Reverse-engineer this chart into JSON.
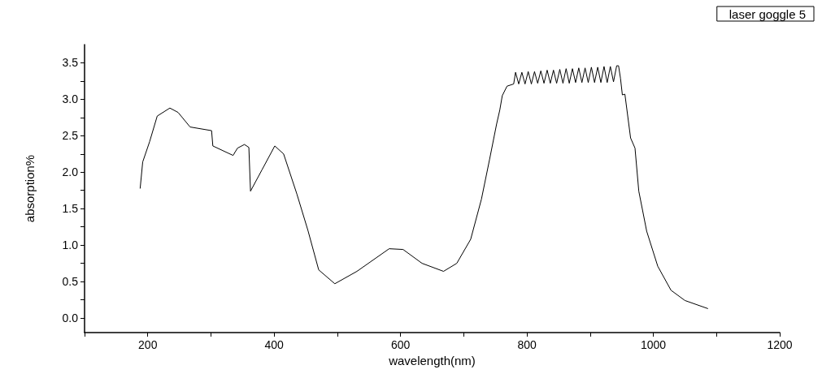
{
  "chart_data": {
    "type": "line",
    "xlabel": "wavelength(nm)",
    "ylabel": "absorption%",
    "legend": "top right",
    "grid": false,
    "marker": "none",
    "line_style": "solid",
    "xlim": [
      100,
      1200
    ],
    "ylim": [
      -0.2,
      3.75
    ],
    "xticks": [
      {
        "value": 100,
        "label": null
      },
      200,
      {
        "value": 300,
        "label": null
      },
      400,
      {
        "value": 500,
        "label": null
      },
      600,
      {
        "value": 700,
        "label": null
      },
      800,
      {
        "value": 900,
        "label": null
      },
      1000,
      {
        "value": 1100,
        "label": null
      },
      1200
    ],
    "yticks": [
      {
        "value": 0,
        "label": "0.0"
      },
      {
        "value": 0.25,
        "label": null
      },
      0.5,
      {
        "value": 0.75,
        "label": null
      },
      {
        "value": 1,
        "label": "1.0"
      },
      {
        "value": 1.25,
        "label": null
      },
      1.5,
      {
        "value": 1.75,
        "label": null
      },
      {
        "value": 2,
        "label": "2.0"
      },
      {
        "value": 2.25,
        "label": null
      },
      2.5,
      {
        "value": 2.75,
        "label": null
      },
      {
        "value": 3,
        "label": "3.0"
      },
      {
        "value": 3.25,
        "label": null
      },
      3.5
    ],
    "series": [
      {
        "name": "laser goggle 5",
        "color": "#000000",
        "x": [
          188,
          192,
          203,
          215,
          235,
          248,
          267,
          301,
          303,
          335,
          342,
          353,
          360,
          362.6,
          380.6,
          401,
          415,
          436,
          453.5,
          470.5,
          496,
          531,
          582,
          604,
          634,
          668,
          689,
          711,
          728,
          741,
          752,
          757,
          761,
          768.5,
          779,
          782,
          787,
          792,
          797,
          802,
          807,
          812,
          817,
          822,
          827,
          832,
          837,
          842,
          847,
          852,
          857,
          862,
          867,
          872,
          877,
          882,
          887,
          892,
          897,
          902,
          907,
          912,
          917,
          922,
          927,
          932,
          937,
          942,
          945,
          948,
          951,
          955,
          964,
          971,
          977,
          989.5,
          1007,
          1028,
          1050,
          1086
        ],
        "values": [
          1.78,
          2.14,
          2.42,
          2.77,
          2.88,
          2.82,
          2.62,
          2.57,
          2.36,
          2.23,
          2.33,
          2.38,
          2.34,
          1.74,
          2.03,
          2.36,
          2.25,
          1.7,
          1.2,
          0.66,
          0.47,
          0.64,
          0.95,
          0.94,
          0.75,
          0.64,
          0.75,
          1.08,
          1.63,
          2.18,
          2.66,
          2.85,
          3.05,
          3.18,
          3.21,
          3.37,
          3.21,
          3.37,
          3.21,
          3.38,
          3.21,
          3.38,
          3.22,
          3.39,
          3.22,
          3.4,
          3.22,
          3.4,
          3.22,
          3.41,
          3.22,
          3.42,
          3.22,
          3.42,
          3.23,
          3.43,
          3.23,
          3.43,
          3.23,
          3.44,
          3.23,
          3.44,
          3.23,
          3.45,
          3.23,
          3.45,
          3.24,
          3.46,
          3.46,
          3.29,
          3.06,
          3.07,
          2.47,
          2.33,
          1.74,
          1.19,
          0.71,
          0.38,
          0.24,
          0.13
        ]
      }
    ]
  }
}
